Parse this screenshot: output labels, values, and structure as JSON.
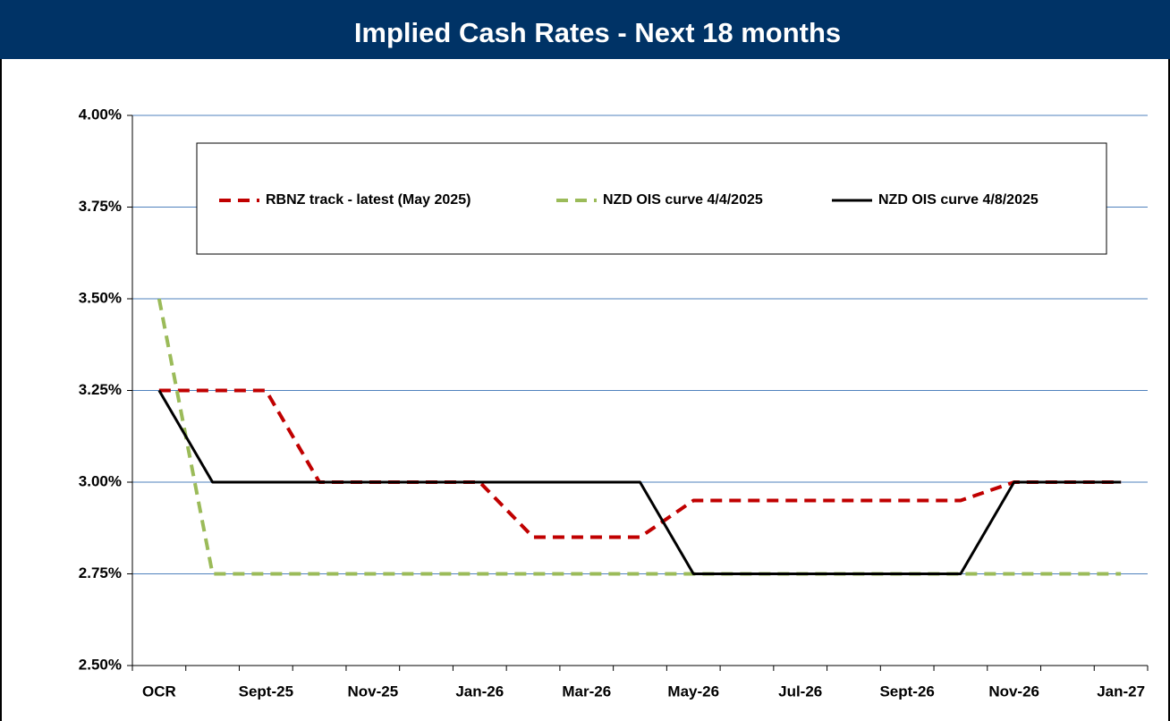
{
  "chart_data": {
    "type": "line",
    "title": "Implied Cash Rates - Next 18 months",
    "categories": [
      "OCR",
      null,
      "Sept-25",
      null,
      "Nov-25",
      null,
      "Jan-26",
      null,
      "Mar-26",
      null,
      "May-26",
      null,
      "Jul-26",
      null,
      "Sept-26",
      null,
      "Nov-26",
      null,
      "Jan-27"
    ],
    "series": [
      {
        "name": "RBNZ track - latest (May 2025)",
        "color": "#c00000",
        "dash": true,
        "values": [
          3.25,
          3.25,
          3.25,
          3.0,
          3.0,
          3.0,
          3.0,
          2.85,
          2.85,
          2.85,
          2.95,
          2.95,
          2.95,
          2.95,
          2.95,
          2.95,
          3.0,
          3.0,
          3.0
        ]
      },
      {
        "name": "NZD OIS curve 4/4/2025",
        "color": "#9bbb59",
        "dash": true,
        "values": [
          3.5,
          2.75,
          2.75,
          2.75,
          2.75,
          2.75,
          2.75,
          2.75,
          2.75,
          2.75,
          2.75,
          2.75,
          2.75,
          2.75,
          2.75,
          2.75,
          2.75,
          2.75,
          2.75
        ]
      },
      {
        "name": "NZD OIS curve 4/8/2025",
        "color": "#000000",
        "dash": false,
        "values": [
          3.25,
          3.0,
          3.0,
          3.0,
          3.0,
          3.0,
          3.0,
          3.0,
          3.0,
          3.0,
          2.75,
          2.75,
          2.75,
          2.75,
          2.75,
          2.75,
          3.0,
          3.0,
          3.0
        ]
      }
    ],
    "ylim": [
      2.5,
      4.0
    ],
    "yticks": [
      {
        "value": 2.5,
        "label": "2.50%"
      },
      {
        "value": 2.75,
        "label": "2.75%"
      },
      {
        "value": 3.0,
        "label": "3.00%"
      },
      {
        "value": 3.25,
        "label": "3.25%"
      },
      {
        "value": 3.5,
        "label": "3.50%"
      },
      {
        "value": 3.75,
        "label": "3.75%"
      },
      {
        "value": 4.0,
        "label": "4.00%"
      }
    ],
    "grid": true
  }
}
